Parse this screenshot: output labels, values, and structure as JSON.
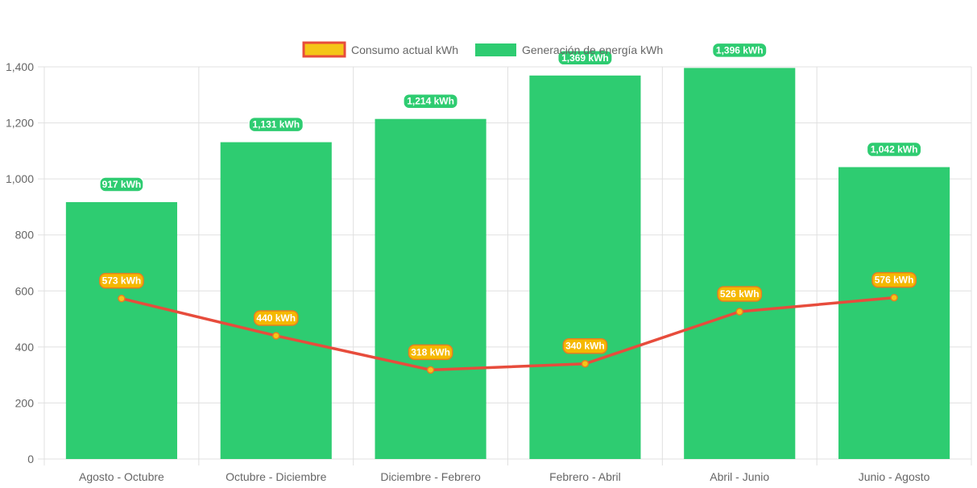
{
  "chart_data": {
    "type": "bar",
    "categories": [
      "Agosto - Octubre",
      "Octubre - Diciembre",
      "Diciembre - Febrero",
      "Febrero - Abril",
      "Abril - Junio",
      "Junio - Agosto"
    ],
    "series": [
      {
        "name": "Consumo actual kWh",
        "type": "line",
        "values": [
          573,
          440,
          318,
          340,
          526,
          576
        ],
        "labels": [
          "573 kWh",
          "440 kWh",
          "318 kWh",
          "340 kWh",
          "526 kWh",
          "576 kWh"
        ]
      },
      {
        "name": "Generación de energía kWh",
        "type": "bar",
        "values": [
          917,
          1131,
          1214,
          1369,
          1396,
          1042
        ],
        "labels": [
          "917 kWh",
          "1,131 kWh",
          "1,214 kWh",
          "1,369 kWh",
          "1,396 kWh",
          "1,042 kWh"
        ]
      }
    ],
    "yticks": [
      "0",
      "200",
      "400",
      "600",
      "800",
      "1,000",
      "1,200",
      "1,400"
    ],
    "ylim": [
      0,
      1400
    ],
    "ytick_step": 200,
    "grid": true,
    "legend": "top-center",
    "title": "",
    "xlabel": "",
    "ylabel": ""
  },
  "colors": {
    "bar": "#2ecc71",
    "line": "#e74c3c",
    "point": "#f5c518",
    "point_border": "#e67e22",
    "label_line_bg": "#f5b800",
    "label_line_border": "#e67e22",
    "grid": "#e0e0e0"
  }
}
